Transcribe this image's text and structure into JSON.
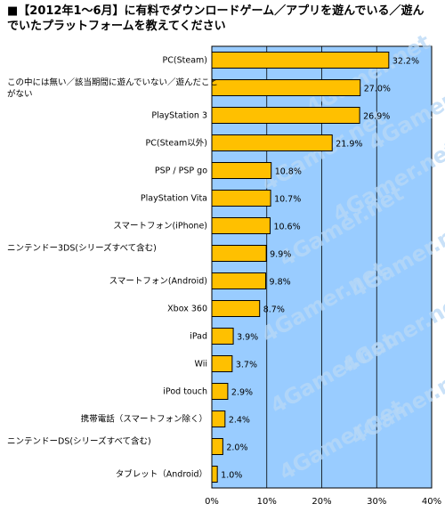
{
  "chart_data": {
    "type": "bar",
    "orientation": "horizontal",
    "title": "■【2012年1～6月】に有料でダウンロードゲーム／アプリを遊んでいる／遊んでいたプラットフォームを教えてください",
    "categories": [
      "PC(Steam)",
      "この中には無い／該当期間に遊んでいない／遊んだことがない",
      "PlayStation 3",
      "PC(Steam以外)",
      "PSP / PSP go",
      "PlayStation Vita",
      "スマートフォン(iPhone)",
      "ニンテンドー3DS(シリーズすべて含む)",
      "スマートフォン(Android)",
      "Xbox 360",
      "iPad",
      "Wii",
      "iPod touch",
      "携帯電話（スマートフォン除く）",
      "ニンテンドーDS(シリーズすべて含む)",
      "タブレット（Android）"
    ],
    "values": [
      32.2,
      27.0,
      26.9,
      21.9,
      10.8,
      10.7,
      10.6,
      9.9,
      9.8,
      8.7,
      3.9,
      3.7,
      2.9,
      2.4,
      2.0,
      1.0
    ],
    "value_labels": [
      "32.2%",
      "27.0%",
      "26.9%",
      "21.9%",
      "10.8%",
      "10.7%",
      "10.6%",
      "9.9%",
      "9.8%",
      "8.7%",
      "3.9%",
      "3.7%",
      "2.9%",
      "2.4%",
      "2.0%",
      "1.0%"
    ],
    "xlim": [
      0,
      40
    ],
    "x_ticks": [
      "0%",
      "10%",
      "20%",
      "30%",
      "40%"
    ],
    "grid": true,
    "watermark": "4Gamer.net",
    "colors": {
      "bar": "#ffc000",
      "bar_stroke": "#000000",
      "plot_bg": "#99ccff",
      "grid": "#000000"
    }
  }
}
